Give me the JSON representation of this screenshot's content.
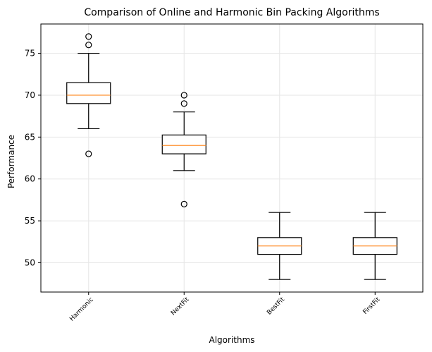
{
  "chart_data": {
    "type": "box",
    "title": "Comparison of Online and Harmonic Bin Packing Algorithms",
    "xlabel": "Algorithms",
    "ylabel": "Performance",
    "ylim": [
      46.5,
      78.5
    ],
    "yticks": [
      50,
      55,
      60,
      65,
      70,
      75
    ],
    "grid": true,
    "categories": [
      "Harmonic",
      "NextFit",
      "BestFit",
      "FirstFit"
    ],
    "boxes": [
      {
        "name": "Harmonic",
        "whisker_low": 66,
        "q1": 69,
        "median": 70,
        "q3": 71.5,
        "whisker_high": 75,
        "outliers": [
          63,
          76,
          77
        ]
      },
      {
        "name": "NextFit",
        "whisker_low": 61,
        "q1": 63,
        "median": 64,
        "q3": 65.25,
        "whisker_high": 68,
        "outliers": [
          57,
          69,
          70
        ]
      },
      {
        "name": "BestFit",
        "whisker_low": 48,
        "q1": 51,
        "median": 52,
        "q3": 53,
        "whisker_high": 56,
        "outliers": []
      },
      {
        "name": "FirstFit",
        "whisker_low": 48,
        "q1": 51,
        "median": 52,
        "q3": 53,
        "whisker_high": 56,
        "outliers": []
      }
    ],
    "colors": {
      "box": "#000000",
      "median": "#ff7f0e",
      "grid": "#e6e6e6"
    }
  }
}
